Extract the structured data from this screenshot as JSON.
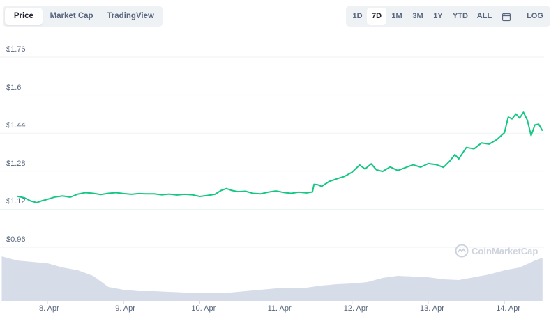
{
  "tabs": [
    {
      "label": "Price",
      "active": true
    },
    {
      "label": "Market Cap",
      "active": false
    },
    {
      "label": "TradingView",
      "active": false
    }
  ],
  "ranges": [
    {
      "label": "1D",
      "active": false
    },
    {
      "label": "7D",
      "active": true
    },
    {
      "label": "1M",
      "active": false
    },
    {
      "label": "3M",
      "active": false
    },
    {
      "label": "1Y",
      "active": false
    },
    {
      "label": "YTD",
      "active": false
    },
    {
      "label": "ALL",
      "active": false
    }
  ],
  "calendar_icon": "calendar-icon",
  "log_label": "LOG",
  "watermark": {
    "text": "CoinMarketCap",
    "icon": "coinmarketcap-logo"
  },
  "colors": {
    "line": "#16c784",
    "volume": "#cfd6e4",
    "grid": "#eff2f5",
    "text": "#58667e"
  },
  "chart_data": {
    "type": "line",
    "title": "",
    "xlabel": "",
    "ylabel": "",
    "ylim": [
      0.88,
      1.84
    ],
    "yticks": [
      "$0.96",
      "$1.12",
      "$1.28",
      "$1.44",
      "$1.6",
      "$1.76"
    ],
    "ytick_values": [
      0.96,
      1.12,
      1.28,
      1.44,
      1.6,
      1.76
    ],
    "xticks": [
      "8. Apr",
      "9. Apr",
      "10. Apr",
      "11. Apr",
      "12. Apr",
      "13. Apr",
      "14. Apr"
    ],
    "grid": true,
    "legend": "none",
    "series": [
      {
        "kind": "price",
        "x": [
          7.6,
          7.7,
          7.78,
          7.86,
          7.93,
          8.0,
          8.1,
          8.2,
          8.3,
          8.4,
          8.5,
          8.6,
          8.7,
          8.8,
          8.9,
          9.0,
          9.1,
          9.2,
          9.3,
          9.4,
          9.5,
          9.6,
          9.7,
          9.8,
          9.9,
          10.0,
          10.1,
          10.2,
          10.28,
          10.35,
          10.42,
          10.5,
          10.6,
          10.7,
          10.8,
          10.9,
          11.0,
          11.1,
          11.2,
          11.3,
          11.4,
          11.48,
          11.5,
          11.55,
          11.6,
          11.7,
          11.8,
          11.9,
          12.0,
          12.1,
          12.17,
          12.25,
          12.32,
          12.4,
          12.5,
          12.6,
          12.7,
          12.8,
          12.9,
          13.0,
          13.1,
          13.2,
          13.28,
          13.35,
          13.4,
          13.5,
          13.6,
          13.7,
          13.8,
          13.9,
          14.0,
          14.05,
          14.1,
          14.15,
          14.2,
          14.25,
          14.3,
          14.35,
          14.4,
          14.45,
          14.5
        ],
        "y": [
          1.175,
          1.168,
          1.155,
          1.148,
          1.156,
          1.162,
          1.172,
          1.176,
          1.171,
          1.184,
          1.19,
          1.187,
          1.182,
          1.187,
          1.19,
          1.186,
          1.183,
          1.186,
          1.185,
          1.185,
          1.181,
          1.184,
          1.18,
          1.183,
          1.181,
          1.174,
          1.178,
          1.183,
          1.199,
          1.207,
          1.199,
          1.194,
          1.196,
          1.187,
          1.185,
          1.192,
          1.197,
          1.191,
          1.187,
          1.192,
          1.189,
          1.193,
          1.225,
          1.223,
          1.216,
          1.237,
          1.248,
          1.258,
          1.276,
          1.306,
          1.289,
          1.311,
          1.286,
          1.279,
          1.298,
          1.283,
          1.295,
          1.307,
          1.297,
          1.312,
          1.308,
          1.296,
          1.322,
          1.35,
          1.332,
          1.38,
          1.374,
          1.399,
          1.394,
          1.413,
          1.442,
          1.508,
          1.5,
          1.521,
          1.504,
          1.528,
          1.495,
          1.43,
          1.475,
          1.478,
          1.45
        ]
      },
      {
        "kind": "volume",
        "x": [
          7.4,
          7.6,
          7.8,
          8.0,
          8.2,
          8.4,
          8.6,
          8.8,
          9.0,
          9.2,
          9.4,
          9.6,
          9.8,
          10.0,
          10.2,
          10.4,
          10.6,
          10.8,
          11.0,
          11.2,
          11.4,
          11.6,
          11.8,
          12.0,
          12.2,
          12.4,
          12.6,
          12.8,
          13.0,
          13.2,
          13.4,
          13.6,
          13.8,
          14.0,
          14.2,
          14.4,
          14.5
        ]
      }
    ]
  }
}
